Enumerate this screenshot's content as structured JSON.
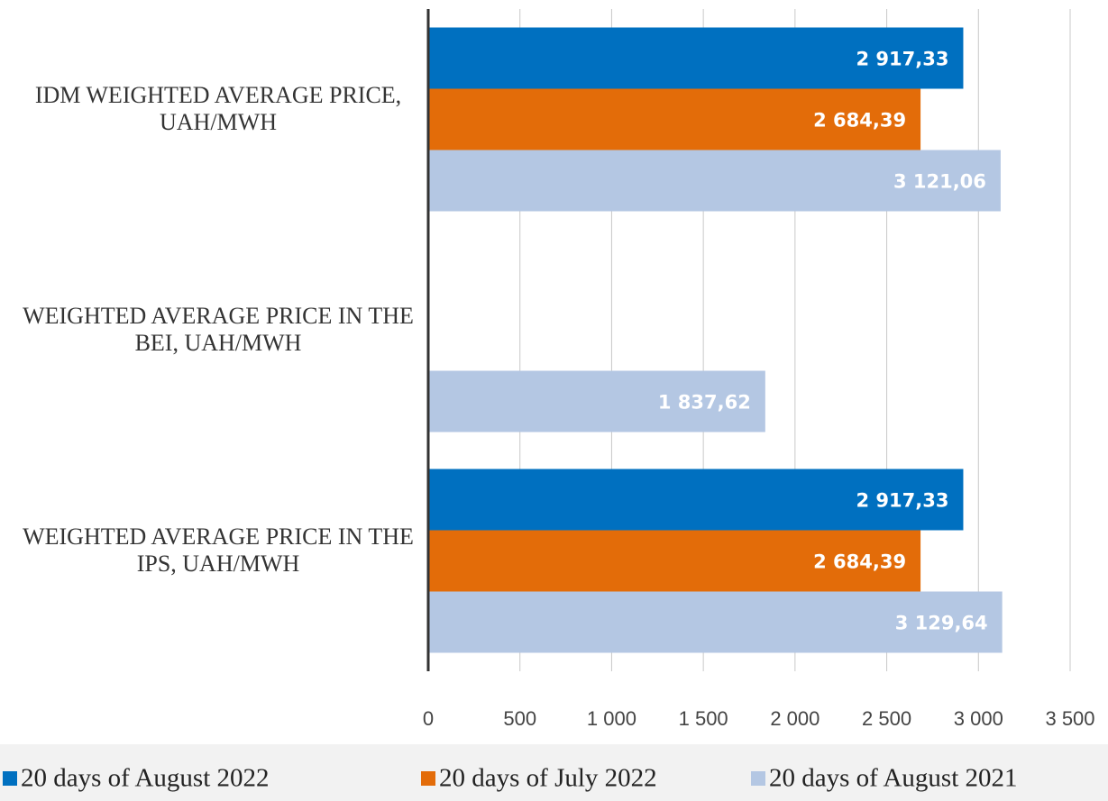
{
  "chart_data": {
    "type": "bar",
    "orientation": "horizontal",
    "categories": [
      "IDM WEIGHTED AVERAGE PRICE, UAH/MWH",
      "WEIGHTED AVERAGE PRICE IN THE BEI, UAH/MWH",
      "WEIGHTED AVERAGE PRICE IN THE IPS, UAH/MWH"
    ],
    "series": [
      {
        "name": "20 days of August 2022",
        "color": "#0070c0",
        "values": [
          2917.33,
          null,
          2917.33
        ],
        "value_labels": [
          "2 917,33",
          null,
          "2 917,33"
        ]
      },
      {
        "name": "20 days of July 2022",
        "color": "#e36c09",
        "values": [
          2684.39,
          null,
          2684.39
        ],
        "value_labels": [
          "2 684,39",
          null,
          "2 684,39"
        ]
      },
      {
        "name": "20 days of August 2021",
        "color": "#b4c7e3",
        "values": [
          3121.06,
          1837.62,
          3129.64
        ],
        "value_labels": [
          "3 121,06",
          "1 837,62",
          "3 129,64"
        ]
      }
    ],
    "xlim": [
      0,
      3500
    ],
    "xticks": [
      0,
      500,
      {
        "value": 1000,
        "label": "1 000"
      },
      {
        "value": 1500,
        "label": "1 500"
      },
      {
        "value": 2000,
        "label": "2 000"
      },
      {
        "value": 2500,
        "label": "2 500"
      },
      {
        "value": 3000,
        "label": "3 000"
      },
      {
        "value": 3500,
        "label": "3 500"
      }
    ],
    "grid": true,
    "legend": "bottom"
  }
}
